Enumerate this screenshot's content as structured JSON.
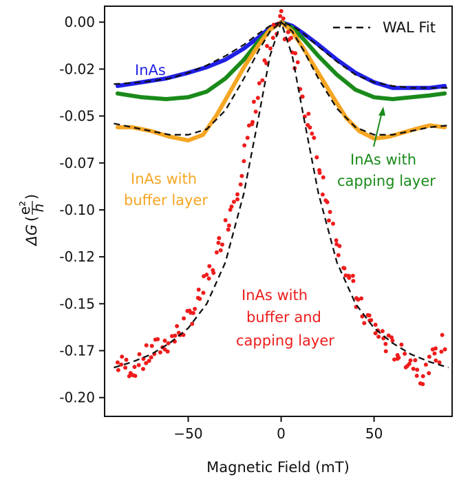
{
  "chart_data": {
    "type": "scatter",
    "title": "",
    "xlabel": "Magnetic Field (mT)",
    "ylabel_main": "ΔG",
    "ylabel_frac_num": "e²",
    "ylabel_frac_den": "h",
    "xlim": [
      -95,
      92
    ],
    "ylim": [
      -0.21,
      0.0085
    ],
    "x_ticks": [
      -50,
      0,
      50
    ],
    "x_tick_labels": [
      "−50",
      "0",
      "50"
    ],
    "y_ticks": [
      0.0,
      -0.025,
      -0.05,
      -0.075,
      -0.1,
      -0.125,
      -0.15,
      -0.175,
      -0.2
    ],
    "y_tick_labels": [
      "0.00",
      "-0.02",
      "-0.05",
      "-0.07",
      "-0.10",
      "-0.12",
      "-0.15",
      "-0.17",
      "-0.20"
    ],
    "grid": false,
    "legend": {
      "position": "top-right",
      "entries": [
        "WAL Fit"
      ]
    },
    "annotations": [
      {
        "text": "InAs",
        "color": "#1f1fe6"
      },
      {
        "text": "InAs with",
        "color": "#f5a623"
      },
      {
        "text": "buffer layer",
        "color": "#f5a623"
      },
      {
        "text": "InAs with",
        "color": "#1a8a1a"
      },
      {
        "text": "capping layer",
        "color": "#1a8a1a"
      },
      {
        "text": "InAs with",
        "color": "#ee1c1c"
      },
      {
        "text": "buffer and",
        "color": "#ee1c1c"
      },
      {
        "text": "capping layer",
        "color": "#ee1c1c"
      }
    ],
    "series": [
      {
        "color": "#1f1fe6",
        "x": [
          -88,
          -75,
          -62,
          -50,
          -40,
          -30,
          -20,
          -12,
          -6,
          0,
          6,
          12,
          20,
          30,
          40,
          50,
          60,
          70,
          80,
          88
        ],
        "y": [
          -0.034,
          -0.032,
          -0.03,
          -0.027,
          -0.024,
          -0.02,
          -0.014,
          -0.008,
          -0.003,
          0.0,
          -0.002,
          -0.006,
          -0.012,
          -0.02,
          -0.027,
          -0.032,
          -0.035,
          -0.035,
          -0.035,
          -0.034
        ]
      },
      {
        "color": "#1a8a1a",
        "x": [
          -88,
          -75,
          -62,
          -50,
          -40,
          -30,
          -20,
          -12,
          -6,
          0,
          6,
          12,
          20,
          30,
          40,
          50,
          60,
          70,
          80,
          88
        ],
        "y": [
          -0.038,
          -0.04,
          -0.041,
          -0.04,
          -0.037,
          -0.03,
          -0.02,
          -0.01,
          -0.004,
          0.0,
          -0.003,
          -0.009,
          -0.018,
          -0.028,
          -0.036,
          -0.04,
          -0.041,
          -0.04,
          -0.039,
          -0.038
        ]
      },
      {
        "color": "#f5a623",
        "x": [
          -88,
          -80,
          -70,
          -60,
          -50,
          -42,
          -35,
          -28,
          -20,
          -12,
          -6,
          0,
          6,
          12,
          20,
          28,
          35,
          42,
          50,
          58,
          65,
          72,
          80,
          88
        ],
        "y": [
          -0.056,
          -0.056,
          -0.058,
          -0.061,
          -0.063,
          -0.06,
          -0.05,
          -0.038,
          -0.024,
          -0.012,
          -0.004,
          0.0,
          -0.005,
          -0.014,
          -0.027,
          -0.04,
          -0.051,
          -0.058,
          -0.062,
          -0.061,
          -0.059,
          -0.057,
          -0.055,
          -0.056
        ]
      },
      {
        "color": "#ee1c1c",
        "x": [
          -88,
          -84,
          -80,
          -76,
          -72,
          -68,
          -64,
          -60,
          -56,
          -52,
          -48,
          -44,
          -40,
          -36,
          -32,
          -28,
          -24,
          -20,
          -16,
          -12,
          -8,
          -4,
          0,
          4,
          8,
          12,
          16,
          20,
          24,
          28,
          32,
          36,
          40,
          44,
          48,
          52,
          56,
          60,
          64,
          68,
          72,
          76,
          80,
          84,
          88
        ],
        "y": [
          -0.182,
          -0.183,
          -0.184,
          -0.182,
          -0.178,
          -0.175,
          -0.172,
          -0.17,
          -0.166,
          -0.161,
          -0.155,
          -0.148,
          -0.139,
          -0.128,
          -0.116,
          -0.103,
          -0.09,
          -0.073,
          -0.056,
          -0.038,
          -0.021,
          -0.007,
          0.0,
          -0.008,
          -0.023,
          -0.04,
          -0.058,
          -0.075,
          -0.092,
          -0.108,
          -0.122,
          -0.135,
          -0.146,
          -0.155,
          -0.16,
          -0.165,
          -0.17,
          -0.174,
          -0.177,
          -0.179,
          -0.182,
          -0.188,
          -0.181,
          -0.178,
          -0.17
        ]
      },
      {
        "name": "WAL Fit",
        "style": "dashed",
        "color": "#111111",
        "x": [
          -90,
          -80,
          -70,
          -60,
          -50,
          -40,
          -30,
          -20,
          -12,
          -6,
          0,
          6,
          12,
          20,
          30,
          40,
          50,
          60,
          70,
          80,
          90
        ],
        "y": [
          -0.184,
          -0.181,
          -0.177,
          -0.171,
          -0.163,
          -0.15,
          -0.128,
          -0.091,
          -0.05,
          -0.018,
          0.0,
          -0.018,
          -0.05,
          -0.091,
          -0.128,
          -0.15,
          -0.163,
          -0.171,
          -0.177,
          -0.181,
          -0.184
        ]
      },
      {
        "style": "dashed",
        "color": "#111111",
        "x": [
          -90,
          -75,
          -60,
          -50,
          -40,
          -30,
          -20,
          -12,
          -6,
          0,
          6,
          12,
          20,
          30,
          40,
          50,
          60,
          70,
          80,
          90
        ],
        "y": [
          -0.033,
          -0.032,
          -0.03,
          -0.027,
          -0.023,
          -0.018,
          -0.012,
          -0.006,
          -0.002,
          0.0,
          -0.002,
          -0.006,
          -0.013,
          -0.021,
          -0.028,
          -0.032,
          -0.034,
          -0.035,
          -0.035,
          -0.035
        ]
      },
      {
        "style": "dashed",
        "color": "#111111",
        "x": [
          -90,
          -75,
          -60,
          -50,
          -40,
          -30,
          -20,
          -12,
          -6,
          0,
          6,
          12,
          20,
          30,
          40,
          50,
          60,
          70,
          80,
          90
        ],
        "y": [
          -0.054,
          -0.057,
          -0.06,
          -0.06,
          -0.057,
          -0.047,
          -0.03,
          -0.015,
          -0.005,
          0.0,
          -0.005,
          -0.015,
          -0.03,
          -0.046,
          -0.056,
          -0.06,
          -0.06,
          -0.058,
          -0.056,
          -0.055
        ]
      }
    ]
  }
}
